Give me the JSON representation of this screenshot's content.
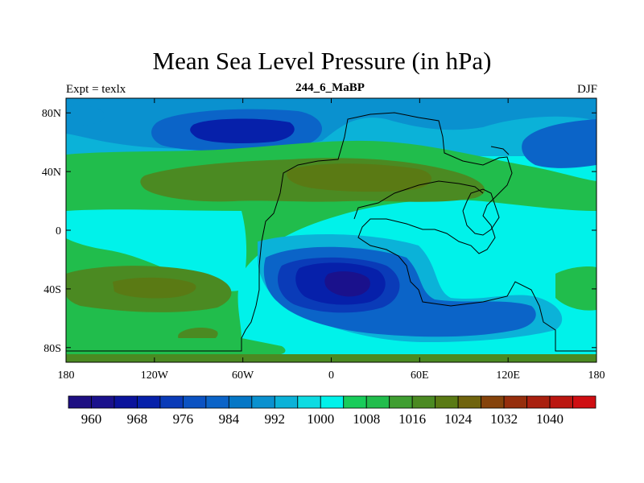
{
  "title": "Mean Sea Level Pressure (in hPa)",
  "left_label": "Expt = texlx",
  "center_label": "244_6_MaBP",
  "right_label": "DJF",
  "x_axis": {
    "range": [
      -180,
      180
    ],
    "ticks": [
      {
        "value": -180,
        "label": "180"
      },
      {
        "value": -120,
        "label": "120W"
      },
      {
        "value": -60,
        "label": "60W"
      },
      {
        "value": 0,
        "label": "0"
      },
      {
        "value": 60,
        "label": "60E"
      },
      {
        "value": 120,
        "label": "120E"
      },
      {
        "value": 180,
        "label": "180"
      }
    ]
  },
  "y_axis": {
    "range": [
      -90,
      90
    ],
    "ticks": [
      {
        "value": 80,
        "label": "80N"
      },
      {
        "value": 40,
        "label": "40N"
      },
      {
        "value": 0,
        "label": "0"
      },
      {
        "value": -40,
        "label": "40S"
      },
      {
        "value": -80,
        "label": "80S"
      }
    ]
  },
  "colorbar": {
    "levels": [
      956,
      960,
      964,
      968,
      972,
      976,
      980,
      984,
      988,
      992,
      996,
      1000,
      1004,
      1008,
      1012,
      1016,
      1020,
      1024,
      1028,
      1032,
      1036,
      1040,
      1044
    ],
    "colors": [
      "#1e0f82",
      "#1a118c",
      "#0b139c",
      "#0620aa",
      "#0a3bb8",
      "#0b52c2",
      "#0b64c8",
      "#0577c6",
      "#0a91cf",
      "#0bb2d8",
      "#0ddbe2",
      "#00f2ea",
      "#18cc5a",
      "#21bd4c",
      "#3f9e31",
      "#4b8a22",
      "#5a7a14",
      "#70640d",
      "#85430b",
      "#962e0c",
      "#a9200f",
      "#bb1610",
      "#cf0e12"
    ],
    "labels": [
      "960",
      "968",
      "976",
      "984",
      "992",
      "1000",
      "1008",
      "1016",
      "1024",
      "1032",
      "1040"
    ]
  },
  "colors": {
    "deep_low": "#0e1e8e",
    "low": "#0a3bb8",
    "mid_low": "#0b64c8",
    "moderate": "#0bb2d8",
    "neutral": "#00f2ea",
    "high": "#21bd4c",
    "higher": "#4b8a22",
    "peak": "#5a7a14"
  }
}
